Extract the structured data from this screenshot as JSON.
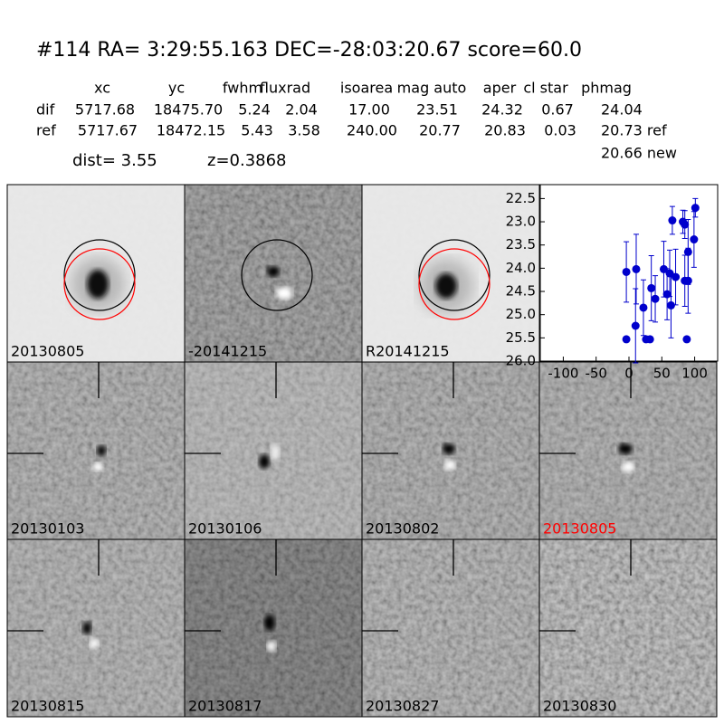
{
  "header": {
    "title": "#114   RA= 3:29:55.163 DEC=-28:03:20.67      score=60.0"
  },
  "table": {
    "columns": [
      "xc",
      "yc",
      "fwhm",
      "fluxrad",
      "isoarea",
      "mag auto",
      "aper",
      "cl star",
      "phmag"
    ],
    "rows": [
      [
        "dif",
        "5717.68",
        "18475.70",
        "5.24",
        "2.04",
        "17.00",
        "23.51",
        "24.32",
        "0.67",
        "24.04"
      ],
      [
        "ref",
        "5717.67",
        "18472.15",
        "5.43",
        "3.58",
        "240.00",
        "20.77",
        "20.83",
        "0.03",
        "20.73 ref"
      ]
    ],
    "extra": "20.66 new"
  },
  "info": {
    "dist": "dist=  3.55",
    "z": "z=0.3868"
  },
  "stamps": [
    {
      "label": "20130805"
    },
    {
      "label": "-20141215"
    },
    {
      "label": "R20141215"
    },
    {
      "label": "20130103"
    },
    {
      "label": "20130106"
    },
    {
      "label": "20130802"
    },
    {
      "label": "20130805",
      "color": "#ff0000"
    },
    {
      "label": "20130815"
    },
    {
      "label": "20130817"
    },
    {
      "label": "20130827"
    },
    {
      "label": "20130830"
    }
  ],
  "chart_data": {
    "type": "errorbar",
    "x": [
      -4,
      -4,
      10,
      11,
      22,
      26,
      32,
      34,
      40,
      53,
      58,
      62,
      64,
      66,
      71,
      82,
      85,
      85,
      88,
      90,
      90,
      99,
      101
    ],
    "values": [
      25.53,
      24.08,
      25.24,
      24.02,
      24.85,
      25.53,
      25.53,
      24.43,
      24.66,
      24.02,
      24.56,
      24.11,
      24.8,
      22.97,
      24.19,
      23.0,
      23.06,
      24.27,
      25.53,
      24.27,
      23.65,
      23.38,
      22.7
    ],
    "errors": [
      0.05,
      0.65,
      0.8,
      0.75,
      0.6,
      0.05,
      0.05,
      0.7,
      0.5,
      0.6,
      0.55,
      0.5,
      0.7,
      0.3,
      0.6,
      0.25,
      0.3,
      0.55,
      0.05,
      0.7,
      0.7,
      0.6,
      0.2
    ],
    "color": "#0000cc",
    "xlim": [
      -135,
      135
    ],
    "ylim": [
      22.2,
      26.0
    ],
    "y_inverted": true,
    "xticks": [
      -100,
      -50,
      0,
      50,
      100
    ],
    "yticks": [
      {
        "value": 22.5,
        "label": "22.5"
      },
      {
        "value": 23,
        "label": "23.0"
      },
      {
        "value": 23.5,
        "label": "23.5"
      },
      {
        "value": 24,
        "label": "24.0"
      },
      {
        "value": 24.5,
        "label": "24.5"
      },
      {
        "value": 25,
        "label": "25.0"
      },
      {
        "value": 25.5,
        "label": "25.5"
      },
      {
        "value": 26,
        "label": "26.0"
      }
    ]
  }
}
